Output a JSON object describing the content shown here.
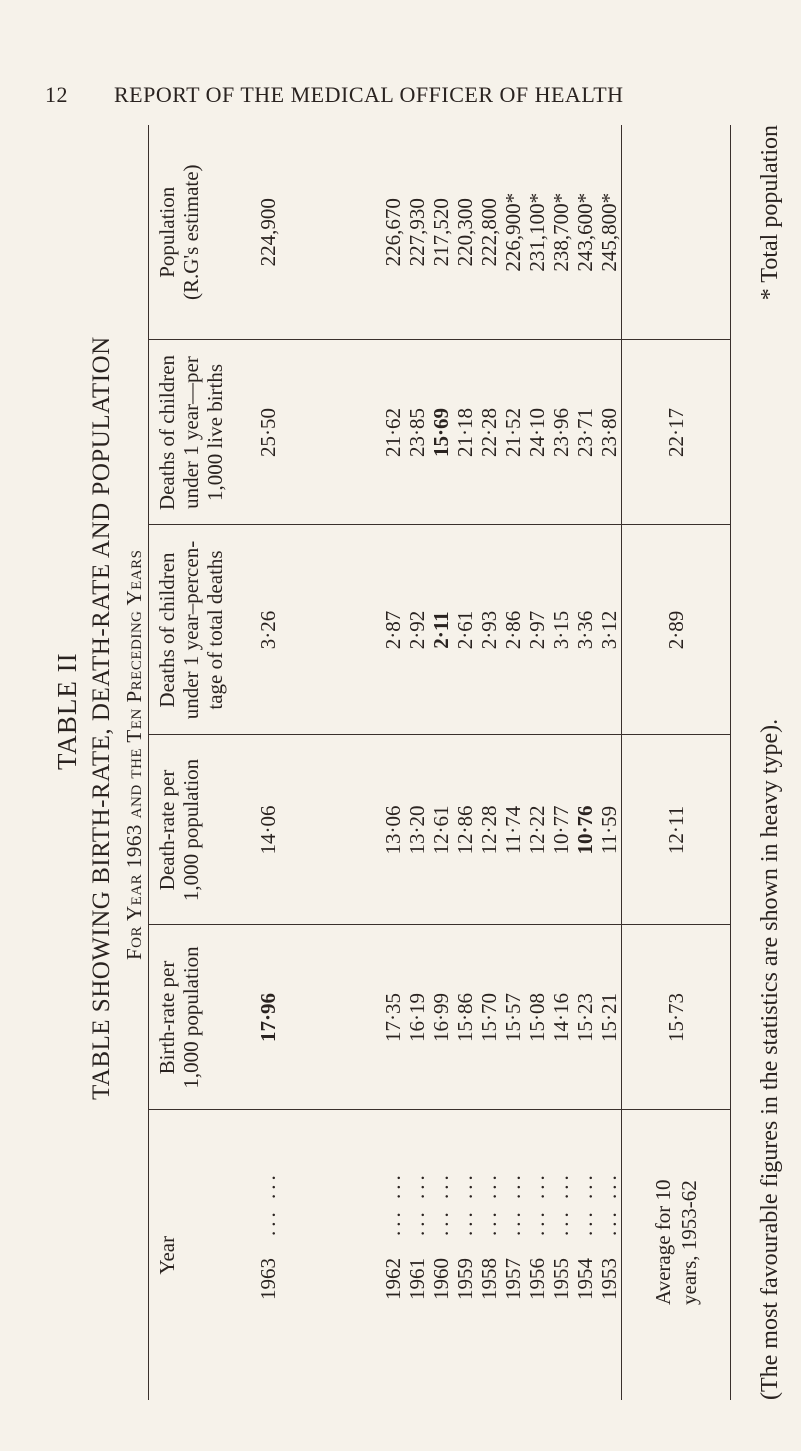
{
  "running_head": {
    "page_number": "12",
    "title": "REPORT OF THE MEDICAL OFFICER OF HEALTH"
  },
  "table": {
    "label": "TABLE II",
    "title": "TABLE SHOWING BIRTH-RATE, DEATH-RATE AND POPULATION",
    "subtitle": "For Year 1963 and the Ten Preceding Years",
    "headers": {
      "year": "Year",
      "birth_rate": [
        "Birth-rate per",
        "1,000 population"
      ],
      "death_rate": [
        "Death-rate per",
        "1,000 population"
      ],
      "pct_deaths": [
        "Deaths of children",
        "under 1 year–percen-",
        "tage of total deaths"
      ],
      "infant_deaths": [
        "Deaths of children",
        "under 1 year—per",
        "1,000 live births"
      ],
      "population": [
        "Population",
        "(R.G's estimate)"
      ]
    },
    "current": {
      "year": "1963",
      "leader": "...   ...",
      "birth_rate": "17·96",
      "death_rate": "14·06",
      "pct_deaths": "3·26",
      "infant_deaths": "25·50",
      "population": "224,900",
      "bold": [
        "birth_rate"
      ]
    },
    "rows": [
      {
        "year": "1962",
        "leader": "...   ...",
        "birth_rate": "17·35",
        "death_rate": "13·06",
        "pct_deaths": "2·87",
        "infant_deaths": "21·62",
        "population": "226,670",
        "bold": []
      },
      {
        "year": "1961",
        "leader": "...   ...",
        "birth_rate": "16·19",
        "death_rate": "13·20",
        "pct_deaths": "2·92",
        "infant_deaths": "23·85",
        "population": "227,930",
        "bold": []
      },
      {
        "year": "1960",
        "leader": "...   ...",
        "birth_rate": "16·99",
        "death_rate": "12·61",
        "pct_deaths": "2·11",
        "infant_deaths": "15·69",
        "population": "217,520",
        "bold": [
          "pct_deaths",
          "infant_deaths"
        ]
      },
      {
        "year": "1959",
        "leader": "...   ...",
        "birth_rate": "15·86",
        "death_rate": "12·86",
        "pct_deaths": "2·61",
        "infant_deaths": "21·18",
        "population": "220,300",
        "bold": []
      },
      {
        "year": "1958",
        "leader": "...   ...",
        "birth_rate": "15·70",
        "death_rate": "12·28",
        "pct_deaths": "2·93",
        "infant_deaths": "22·28",
        "population": "222,800",
        "bold": []
      },
      {
        "year": "1957",
        "leader": "...   ...",
        "birth_rate": "15·57",
        "death_rate": "11·74",
        "pct_deaths": "2·86",
        "infant_deaths": "21·52",
        "population": "226,900*",
        "bold": []
      },
      {
        "year": "1956",
        "leader": "...   ...",
        "birth_rate": "15·08",
        "death_rate": "12·22",
        "pct_deaths": "2·97",
        "infant_deaths": "24·10",
        "population": "231,100*",
        "bold": []
      },
      {
        "year": "1955",
        "leader": "...   ...",
        "birth_rate": "14·16",
        "death_rate": "10·77",
        "pct_deaths": "3·15",
        "infant_deaths": "23·96",
        "population": "238,700*",
        "bold": []
      },
      {
        "year": "1954",
        "leader": "...   ...",
        "birth_rate": "15·23",
        "death_rate": "10·76",
        "pct_deaths": "3·36",
        "infant_deaths": "23·71",
        "population": "243,600*",
        "bold": [
          "death_rate"
        ]
      },
      {
        "year": "1953",
        "leader": "...   ...",
        "birth_rate": "15·21",
        "death_rate": "11·59",
        "pct_deaths": "3·12",
        "infant_deaths": "23·80",
        "population": "245,800*",
        "bold": []
      }
    ],
    "average": {
      "label": [
        "Average for 10",
        "years, 1953-62"
      ],
      "birth_rate": "15·73",
      "death_rate": "12·11",
      "pct_deaths": "2·89",
      "infant_deaths": "22·17",
      "population": ""
    }
  },
  "footnotes": {
    "heavy_type": "(The most favourable figures in the statistics are shown in heavy type).",
    "asterisk": "* Total population"
  }
}
